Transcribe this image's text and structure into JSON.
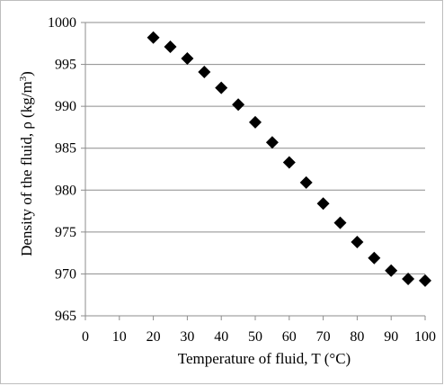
{
  "chart_data": {
    "type": "scatter",
    "title": "",
    "xlabel": "Temperature of fluid, T (°C)",
    "ylabel_main": "Density of the fluid, ρ (kg/m",
    "ylabel_sup": "3",
    "ylabel_close": ")",
    "xlim": [
      0,
      100
    ],
    "ylim": [
      965,
      1000
    ],
    "xticks": [
      0,
      10,
      20,
      30,
      40,
      50,
      60,
      70,
      80,
      90,
      100
    ],
    "yticks": [
      965,
      970,
      975,
      980,
      985,
      990,
      995,
      1000
    ],
    "grid": "horizontal",
    "legend": "none",
    "marker": "diamond",
    "marker_color": "#000000",
    "x": [
      20,
      25,
      30,
      35,
      40,
      45,
      50,
      55,
      60,
      65,
      70,
      75,
      80,
      85,
      90,
      95,
      100
    ],
    "y": [
      998.2,
      997.1,
      995.7,
      994.1,
      992.2,
      990.2,
      988.1,
      985.7,
      983.3,
      980.9,
      978.4,
      976.1,
      973.8,
      971.9,
      970.4,
      969.4,
      969.2
    ]
  }
}
